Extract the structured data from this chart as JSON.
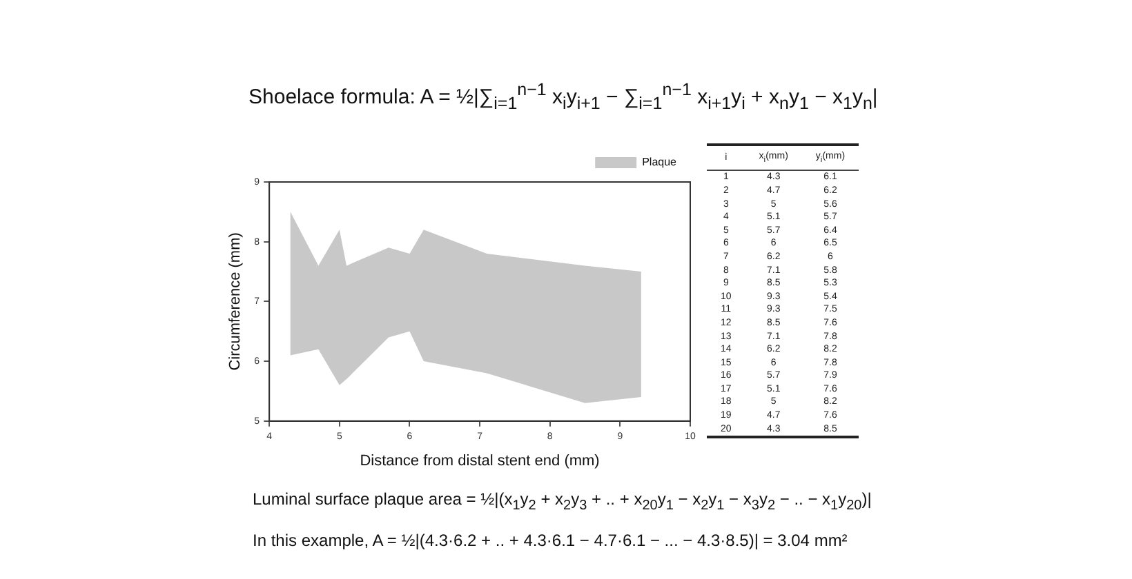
{
  "chart_data": {
    "type": "area",
    "title": "Shoelace formula: A = ½|∑$_{i=1}$$^{n−1}$ x$_{i}$y$_{i+1}$ − ∑$_{i=1}$$^{n−1}$ x$_{i+1}$y$_{i}$ + x$_{n}$y$_{1}$ − x$_{1}$y$_{n}$|",
    "xlabel": "Distance from distal stent end (mm)",
    "ylabel": "Circumference (mm)",
    "xlim": [
      4,
      10
    ],
    "xticks": [
      4,
      5,
      6,
      7,
      8,
      9,
      10
    ],
    "ylim": [
      5,
      9
    ],
    "yticks": [
      5,
      6,
      7,
      8,
      9
    ],
    "grid": false,
    "legend": "top right",
    "series": [
      {
        "name": "Plaque",
        "color": "#c8c8c8",
        "x": [
          4.3,
          4.7,
          5,
          5.1,
          5.7,
          6,
          6.2,
          7.1,
          8.5,
          9.3,
          9.3,
          8.5,
          7.1,
          6.2,
          6,
          5.7,
          5.1,
          5,
          4.7,
          4.3
        ],
        "values": [
          6.1,
          6.2,
          5.6,
          5.7,
          6.4,
          6.5,
          6,
          5.8,
          5.3,
          5.4,
          7.5,
          7.6,
          7.8,
          8.2,
          7.8,
          7.9,
          7.6,
          8.2,
          7.6,
          8.5
        ]
      }
    ],
    "annotations": [
      "Luminal surface plaque area = ½|(x$_{1}$y$_{2}$ + x$_{2}$y$_{3}$ + .. + x$_{20}$y$_{1}$ − x$_{2}$y$_{1}$ − x$_{3}$y$_{2}$ − .. − x$_{1}$y$_{20}$)|",
      "In this example, A = ½|(4.3·6.2 + .. + 4.3·6.1 − 4.7·6.1 − ... − 4.3·8.5)| = 3.04 mm²",
      "i",
      "x$_{i}$(mm)",
      "y$_{i}$(mm)",
      "1",
      "4.3",
      "6.1",
      "2",
      "4.7",
      "6.2",
      "3",
      "5",
      "5.6",
      "4",
      "5.1",
      "5.7",
      "5",
      "5.7",
      "6.4",
      "6",
      "6",
      "6.5",
      "7",
      "6.2",
      "6",
      "8",
      "7.1",
      "5.8",
      "9",
      "8.5",
      "5.3",
      "10",
      "9.3",
      "5.4",
      "11",
      "9.3",
      "7.5",
      "12",
      "8.5",
      "7.6",
      "13",
      "7.1",
      "7.8",
      "14",
      "6.2",
      "8.2",
      "15",
      "6",
      "7.8",
      "16",
      "5.7",
      "7.9",
      "17",
      "5.1",
      "7.6",
      "18",
      "5",
      "8.2",
      "19",
      "4.7",
      "7.6",
      "20",
      "4.3",
      "8.5"
    ]
  }
}
